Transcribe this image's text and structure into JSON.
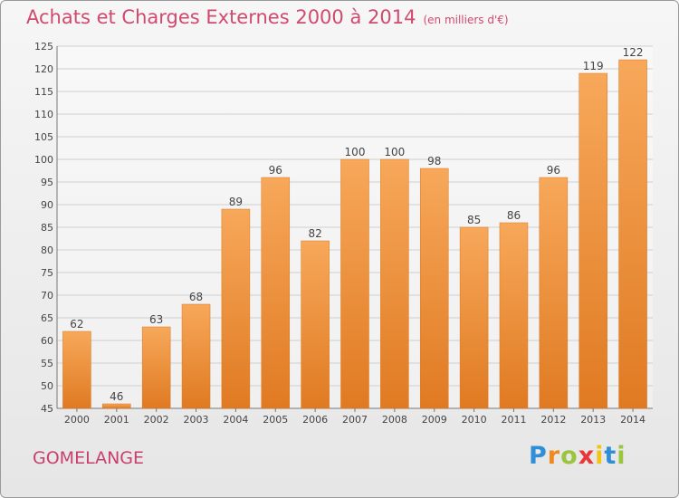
{
  "title": "Achats et Charges Externes 2000 à 2014",
  "unit": "(en milliers d'€)",
  "place": "GOMELANGE",
  "brand": {
    "letters": [
      "P",
      "r",
      "o",
      "x",
      "i",
      "t",
      "i"
    ],
    "colors": [
      "#2e8fd6",
      "#f08a1c",
      "#9bc53d",
      "#e8373a",
      "#f2c318",
      "#2e8fd6",
      "#9bc53d"
    ]
  },
  "colors": {
    "bar": "#f0923a",
    "bar_light": "#f7a85a",
    "bar_dark": "#e07a22",
    "title": "#d04a6e",
    "place": "#c9406e"
  },
  "chart_data": {
    "type": "bar",
    "categories": [
      "2000",
      "2001",
      "2002",
      "2003",
      "2004",
      "2005",
      "2006",
      "2007",
      "2008",
      "2009",
      "2010",
      "2011",
      "2012",
      "2013",
      "2014"
    ],
    "values": [
      62,
      46,
      63,
      68,
      89,
      96,
      82,
      100,
      100,
      98,
      85,
      86,
      96,
      119,
      122
    ],
    "ylim": [
      45,
      125
    ],
    "yticks": [
      45,
      50,
      55,
      60,
      65,
      70,
      75,
      80,
      85,
      90,
      95,
      100,
      105,
      110,
      115,
      120,
      125
    ],
    "grid": true
  }
}
